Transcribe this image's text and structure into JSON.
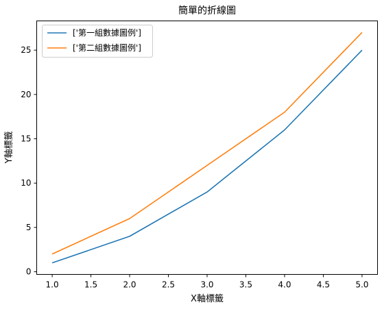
{
  "chart_data": {
    "type": "line",
    "title": "簡單的折線圖",
    "xlabel": "X軸標籤",
    "ylabel": "Y軸標籤",
    "x": [
      1,
      2,
      3,
      4,
      5
    ],
    "xlim": [
      0.8,
      5.2
    ],
    "ylim": [
      -0.3,
      28.3
    ],
    "xticks": [
      "1.0",
      "1.5",
      "2.0",
      "2.5",
      "3.0",
      "3.5",
      "4.0",
      "4.5",
      "5.0"
    ],
    "yticks": [
      "0",
      "5",
      "10",
      "15",
      "20",
      "25"
    ],
    "grid": false,
    "legend_position": "top-left",
    "series": [
      {
        "name": "['第一組數據圖例']",
        "values": [
          1,
          4,
          9,
          16,
          25
        ],
        "color": "#1f77b4"
      },
      {
        "name": "['第二組數據圖例']",
        "values": [
          2,
          6,
          12,
          18,
          27
        ],
        "color": "#ff7f0e"
      }
    ]
  }
}
